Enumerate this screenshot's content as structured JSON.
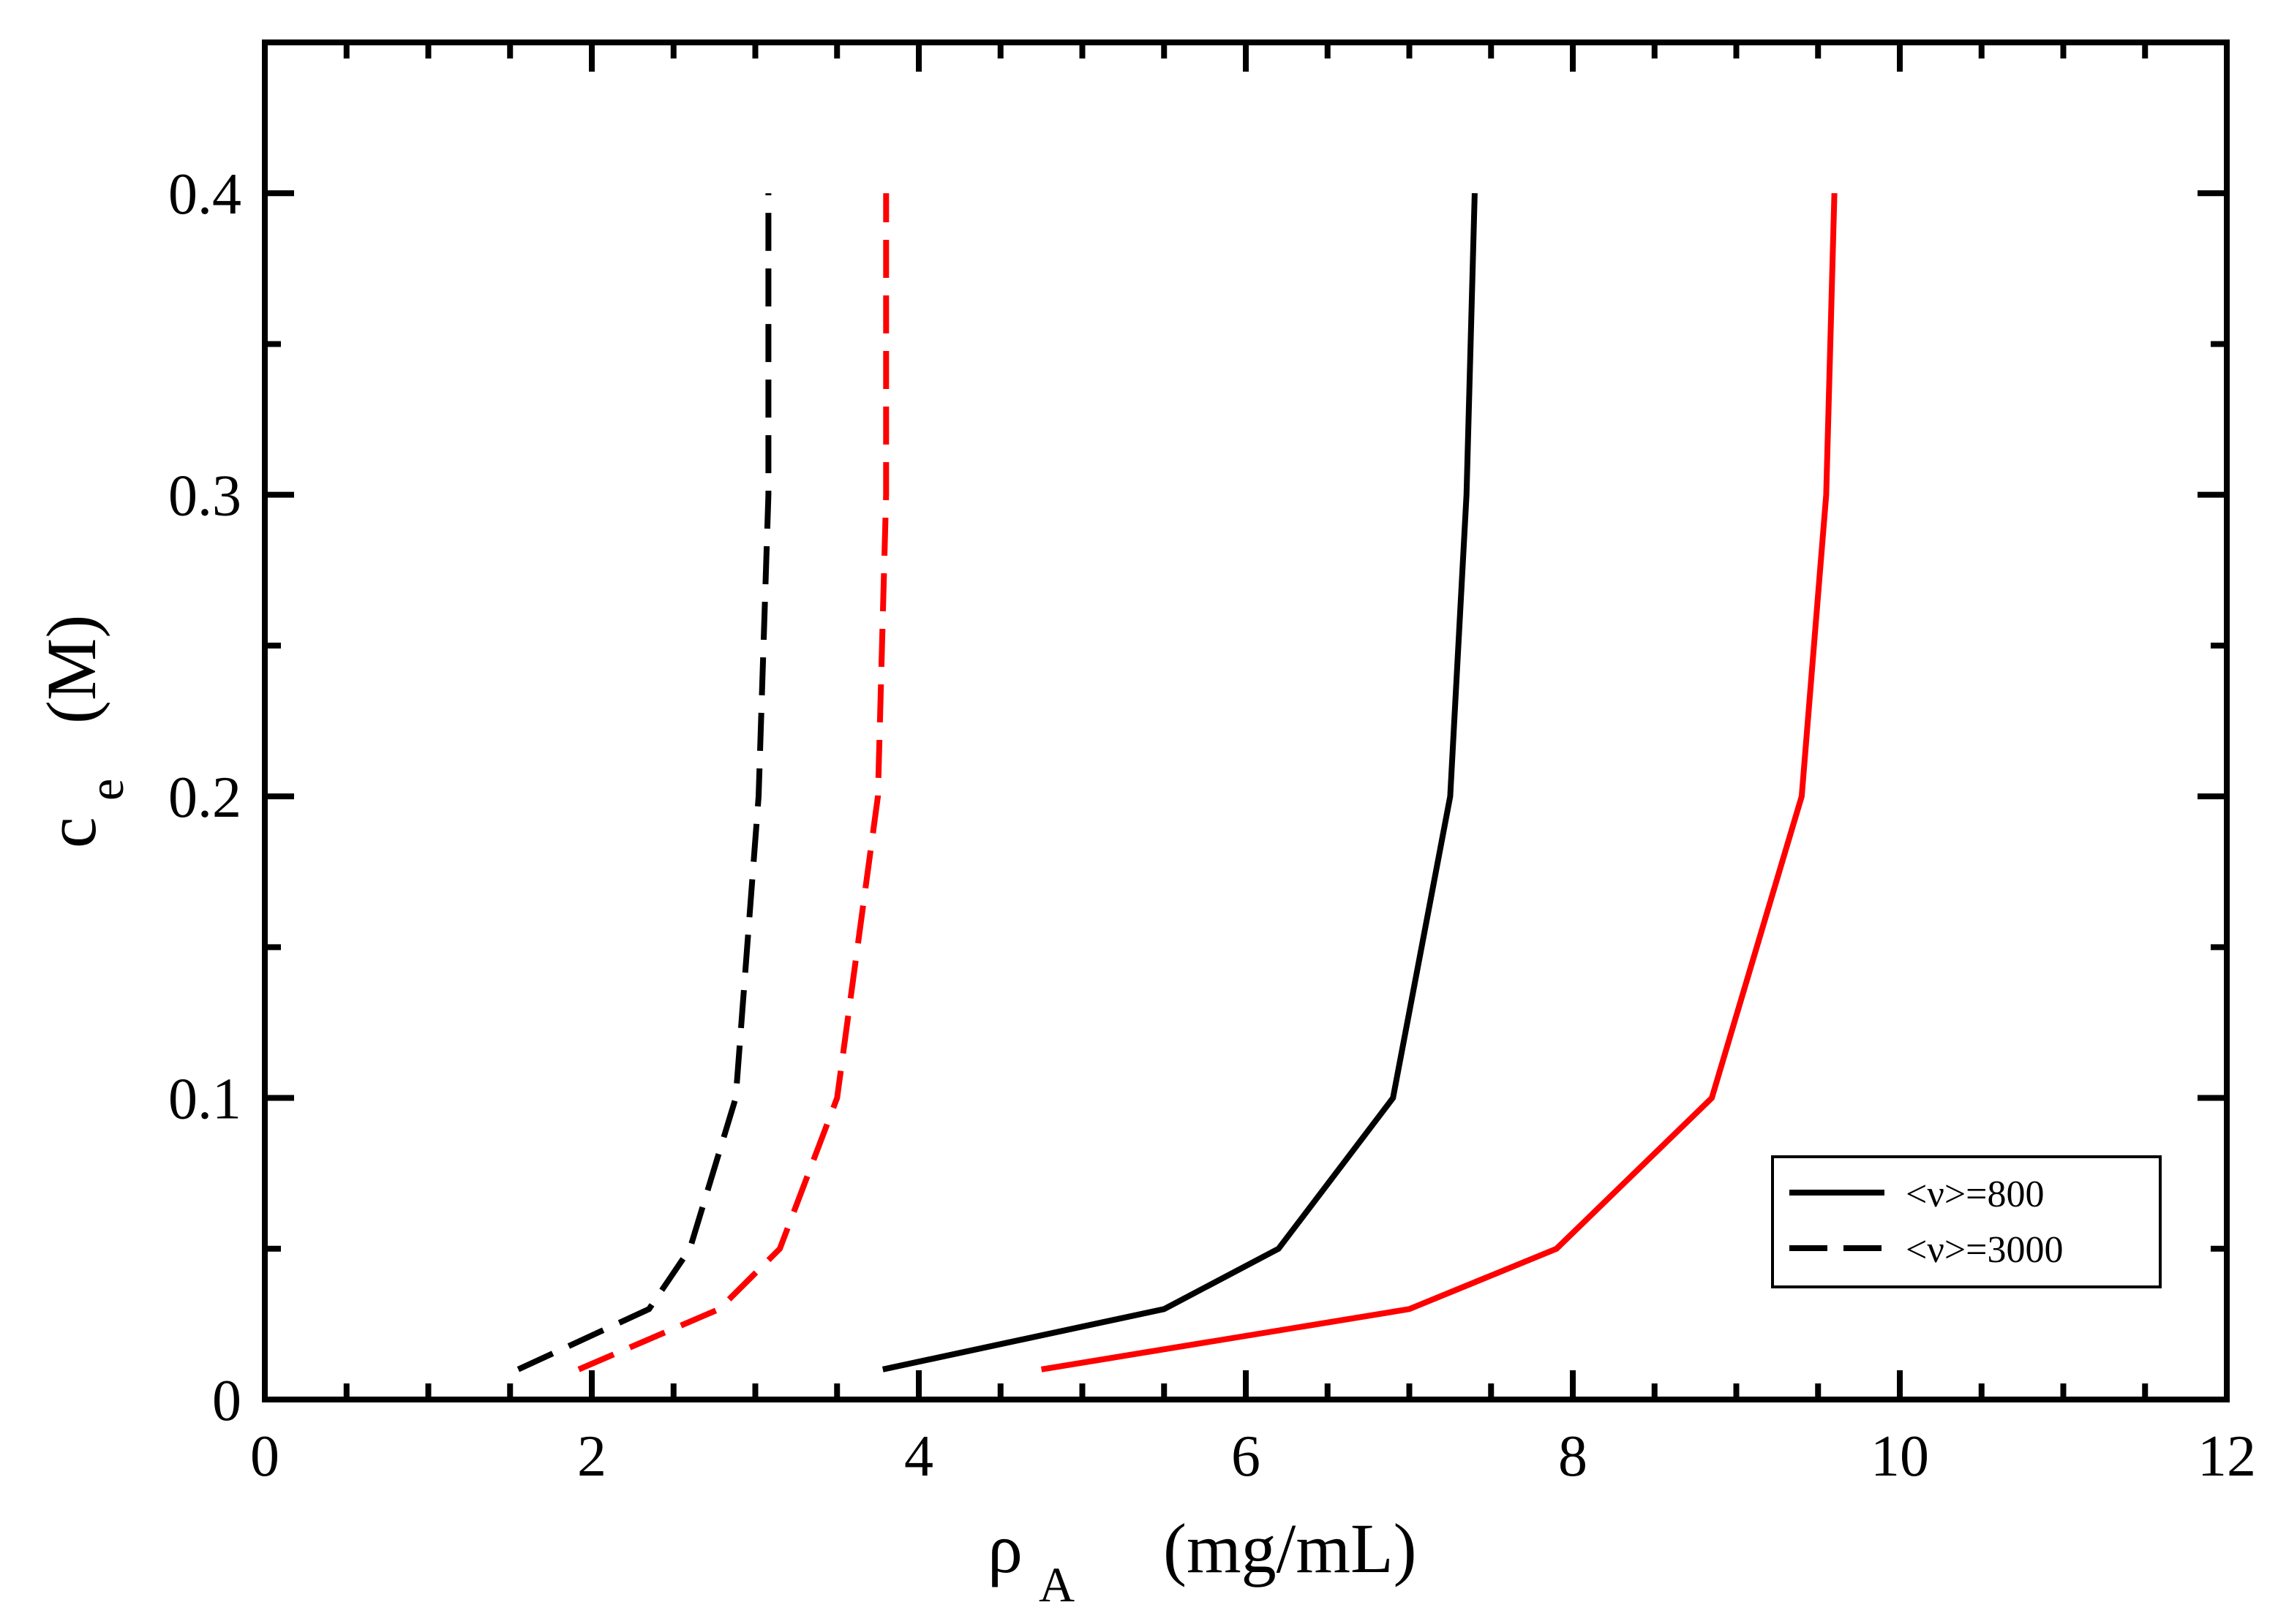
{
  "chart_data": {
    "type": "line",
    "xlabel": "ρ",
    "xlabel_sub": "A",
    "xlabel_unit": "(mg/mL)",
    "ylabel": "c",
    "ylabel_sub": "e",
    "ylabel_unit": "(M)",
    "xlim": [
      0,
      12
    ],
    "ylim": [
      0,
      0.45
    ],
    "x_ticks": [
      0,
      2,
      4,
      6,
      8,
      10,
      12
    ],
    "x_tick_labels": [
      "0",
      "2",
      "4",
      "6",
      "8",
      "10",
      "12"
    ],
    "y_ticks": [
      0,
      0.1,
      0.2,
      0.3,
      0.4
    ],
    "y_tick_labels": [
      "0",
      "0.1",
      "0.2",
      "0.3",
      "0.4"
    ],
    "x_minor_step": 0.5,
    "y_minor_step": 0.05,
    "grid": false,
    "legend": {
      "position": "bottom-right",
      "entries": [
        {
          "label": "<ν>=800",
          "style": "solid",
          "color": "#000000"
        },
        {
          "label": "<ν>=3000",
          "style": "dashed",
          "color": "#000000"
        }
      ]
    },
    "series": [
      {
        "name": "<ν>=800 (black)",
        "color": "#000000",
        "style": "solid",
        "x": [
          3.78,
          5.5,
          6.2,
          6.9,
          7.25,
          7.35,
          7.4
        ],
        "y": [
          0.01,
          0.03,
          0.05,
          0.1,
          0.2,
          0.3,
          0.4
        ]
      },
      {
        "name": "<ν>=800 (red)",
        "color": "#ff0000",
        "style": "solid",
        "x": [
          4.75,
          7.0,
          7.9,
          8.85,
          9.4,
          9.55,
          9.6
        ],
        "y": [
          0.01,
          0.03,
          0.05,
          0.1,
          0.2,
          0.3,
          0.4
        ]
      },
      {
        "name": "<ν>=3000 (black)",
        "color": "#000000",
        "style": "dashed",
        "x": [
          1.55,
          2.35,
          2.6,
          2.88,
          3.02,
          3.08,
          3.08
        ],
        "y": [
          0.01,
          0.03,
          0.05,
          0.1,
          0.2,
          0.3,
          0.4
        ]
      },
      {
        "name": "<ν>=3000 (red)",
        "color": "#ff0000",
        "style": "dashed",
        "x": [
          1.92,
          2.78,
          3.15,
          3.5,
          3.75,
          3.8,
          3.8
        ],
        "y": [
          0.01,
          0.03,
          0.05,
          0.1,
          0.2,
          0.3,
          0.4
        ]
      }
    ]
  }
}
